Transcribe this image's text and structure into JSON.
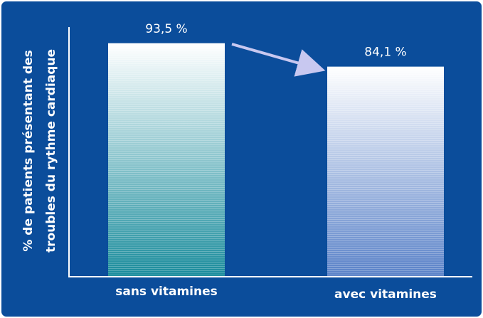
{
  "chart_data": {
    "type": "bar",
    "y_label": [
      "% de patients présentant des",
      "troubles du rythme cardiaque"
    ],
    "categories": [
      "sans vitamines",
      "avec vitamines"
    ],
    "values": [
      93.5,
      84.1
    ],
    "value_labels": [
      "93,5 %",
      "84,1 %"
    ],
    "colors": [
      "#1a8c9c",
      "#5a82c8"
    ],
    "ylim": [
      0,
      100
    ]
  }
}
